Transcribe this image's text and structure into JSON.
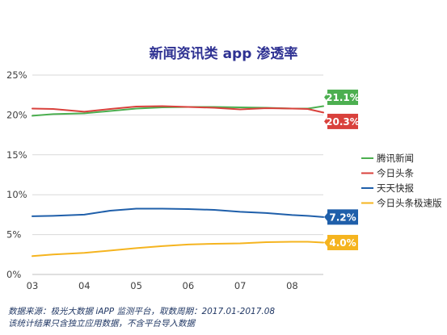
{
  "chart_data": {
    "type": "line",
    "title": "新闻资讯类 app 渗透率",
    "x": [
      "03",
      "04",
      "05",
      "06",
      "07",
      "08"
    ],
    "ylim": [
      0,
      25
    ],
    "ytick_labels": [
      "0%",
      "5%",
      "10%",
      "15%",
      "20%",
      "25%"
    ],
    "grid": true,
    "legend_position": "right",
    "series": [
      {
        "name": "腾讯新闻",
        "color": "#4caf50",
        "end_label": "21.1%",
        "points": [
          [
            0,
            19.9
          ],
          [
            0.4,
            20.1
          ],
          [
            1,
            20.2
          ],
          [
            1.5,
            20.5
          ],
          [
            2,
            20.8
          ],
          [
            2.5,
            20.95
          ],
          [
            3,
            21.0
          ],
          [
            3.5,
            21.0
          ],
          [
            4,
            20.95
          ],
          [
            4.5,
            20.9
          ],
          [
            5,
            20.8
          ],
          [
            5.3,
            20.8
          ],
          [
            5.6,
            21.1
          ]
        ]
      },
      {
        "name": "今日头条",
        "color": "#d9413c",
        "end_label": "20.3%",
        "points": [
          [
            0,
            20.8
          ],
          [
            0.4,
            20.75
          ],
          [
            1,
            20.4
          ],
          [
            1.5,
            20.75
          ],
          [
            2,
            21.05
          ],
          [
            2.5,
            21.1
          ],
          [
            3,
            21.0
          ],
          [
            3.5,
            20.9
          ],
          [
            4,
            20.7
          ],
          [
            4.5,
            20.85
          ],
          [
            5,
            20.8
          ],
          [
            5.3,
            20.75
          ],
          [
            5.6,
            20.3
          ]
        ]
      },
      {
        "name": "天天快报",
        "color": "#1f5faa",
        "end_label": "7.2%",
        "points": [
          [
            0,
            7.3
          ],
          [
            0.4,
            7.35
          ],
          [
            1,
            7.5
          ],
          [
            1.5,
            8.0
          ],
          [
            2,
            8.25
          ],
          [
            2.5,
            8.25
          ],
          [
            3,
            8.2
          ],
          [
            3.5,
            8.1
          ],
          [
            4,
            7.85
          ],
          [
            4.5,
            7.7
          ],
          [
            5,
            7.45
          ],
          [
            5.3,
            7.35
          ],
          [
            5.6,
            7.2
          ]
        ]
      },
      {
        "name": "今日头条极速版",
        "color": "#f5b41f",
        "end_label": "4.0%",
        "points": [
          [
            0,
            2.3
          ],
          [
            0.4,
            2.5
          ],
          [
            1,
            2.7
          ],
          [
            1.5,
            3.0
          ],
          [
            2,
            3.3
          ],
          [
            2.5,
            3.55
          ],
          [
            3,
            3.75
          ],
          [
            3.5,
            3.85
          ],
          [
            4,
            3.9
          ],
          [
            4.5,
            4.05
          ],
          [
            5,
            4.1
          ],
          [
            5.3,
            4.1
          ],
          [
            5.6,
            4.0
          ]
        ]
      }
    ]
  },
  "notes": {
    "source": "数据来源：极光大数据 iAPP 监测平台，取数周期：2017.01-2017.08",
    "disclaimer": "该统计结果只含独立应用数据，不含平台导入数据"
  }
}
